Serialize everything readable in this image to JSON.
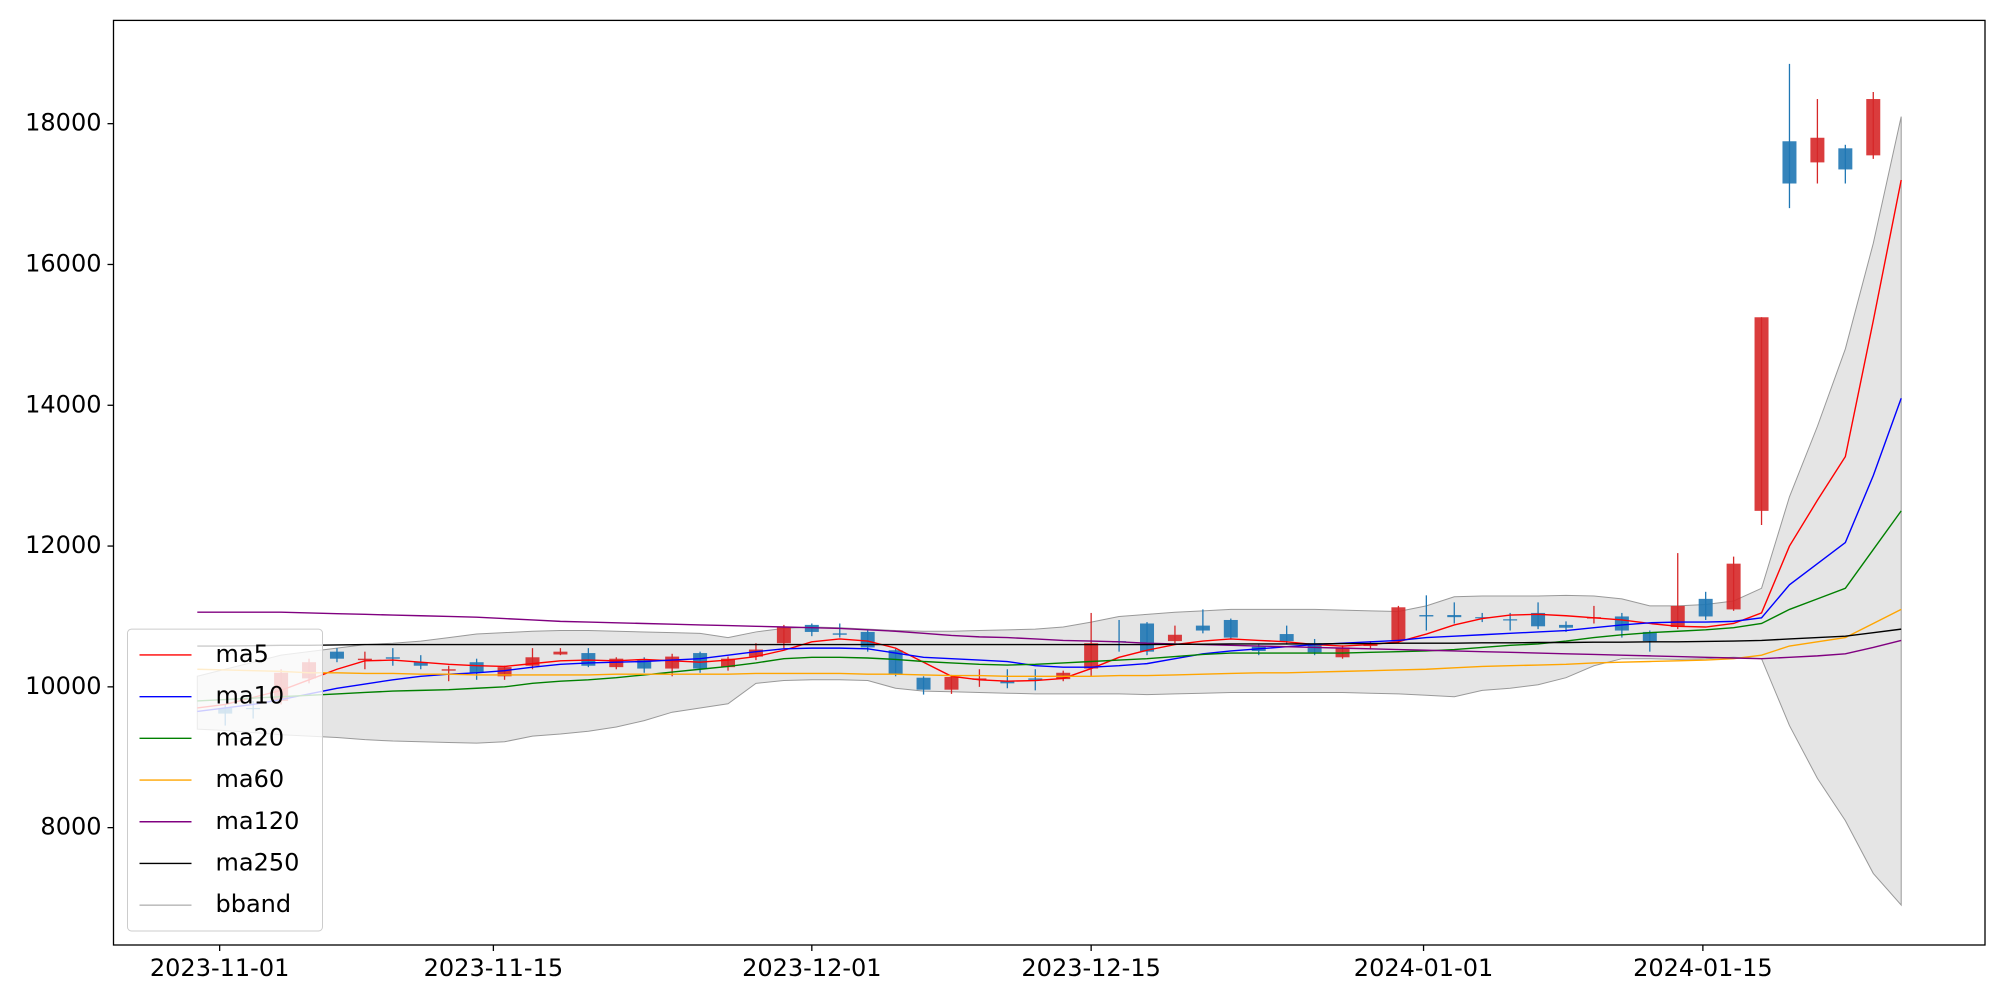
{
  "chart_data": {
    "type": "candlestick",
    "x": [
      0,
      1,
      2,
      3,
      4,
      5,
      6,
      7,
      8,
      9,
      10,
      11,
      12,
      13,
      14,
      15,
      16,
      17,
      18,
      19,
      20,
      21,
      22,
      23,
      24,
      25,
      26,
      27,
      28,
      29,
      30,
      31,
      32,
      33,
      34,
      35,
      36,
      37,
      38,
      39,
      40,
      41,
      42,
      43,
      44,
      45,
      46,
      47,
      48,
      49,
      50,
      51,
      52,
      53,
      54,
      55,
      56,
      57,
      58,
      59,
      60,
      61
    ],
    "xlim": [
      -3,
      64
    ],
    "xticks": [
      {
        "value": 0.8,
        "label": "2023-11-01"
      },
      {
        "value": 10.6,
        "label": "2023-11-15"
      },
      {
        "value": 22,
        "label": "2023-12-01"
      },
      {
        "value": 32,
        "label": "2023-12-15"
      },
      {
        "value": 43.9,
        "label": "2024-01-01"
      },
      {
        "value": 53.9,
        "label": "2024-01-15"
      }
    ],
    "ylim": [
      6333,
      19467
    ],
    "yticks": [
      8000,
      10000,
      12000,
      14000,
      16000,
      18000
    ],
    "legend": "lower left",
    "up_color": "#d62728",
    "down_color": "#1f77b4",
    "candles": {
      "open": [
        null,
        9700,
        9700,
        9800,
        10120,
        10500,
        10380,
        10420,
        10350,
        10230,
        10350,
        10150,
        10300,
        10460,
        10480,
        10280,
        10380,
        10260,
        10480,
        10280,
        10430,
        10620,
        10880,
        10760,
        10780,
        10520,
        10130,
        9960,
        10100,
        10080,
        10120,
        10110,
        10260,
        10650,
        10900,
        10650,
        10870,
        10950,
        10570,
        10750,
        10620,
        10420,
        10580,
        10660,
        11020,
        11020,
        10990,
        10960,
        11050,
        10880,
        10970,
        11000,
        10780,
        10850,
        11250,
        11100,
        12500,
        17750,
        17450,
        17650,
        17550,
        null
      ],
      "high": [
        null,
        9750,
        9800,
        10250,
        10400,
        10550,
        10500,
        10550,
        10450,
        10300,
        10400,
        10300,
        10550,
        10550,
        10550,
        10420,
        10420,
        10470,
        10500,
        10430,
        10620,
        10880,
        10900,
        10900,
        10800,
        10540,
        10150,
        10170,
        10250,
        10250,
        10250,
        10230,
        11050,
        10950,
        10920,
        10870,
        11100,
        10970,
        10600,
        10870,
        10680,
        10590,
        10650,
        11150,
        11300,
        11200,
        11050,
        11050,
        11200,
        10930,
        11150,
        11050,
        10800,
        11900,
        11350,
        11850,
        15250,
        18850,
        18350,
        17700,
        18450,
        null
      ],
      "low": [
        null,
        9450,
        9550,
        9750,
        10050,
        10350,
        10250,
        10300,
        10250,
        10080,
        10100,
        10100,
        10250,
        10450,
        10280,
        10250,
        10200,
        10150,
        10200,
        10230,
        10380,
        10550,
        10720,
        10700,
        10500,
        10150,
        9890,
        9900,
        10000,
        9980,
        9950,
        10080,
        10150,
        10500,
        10450,
        10620,
        10760,
        10680,
        10450,
        10600,
        10450,
        10400,
        10530,
        10620,
        10800,
        10900,
        10920,
        10800,
        10820,
        10780,
        10900,
        10700,
        10500,
        10820,
        10950,
        11080,
        12300,
        16800,
        17150,
        17150,
        17500,
        null
      ],
      "close": [
        null,
        9620,
        9690,
        10200,
        10350,
        10400,
        10400,
        10400,
        10300,
        10250,
        10200,
        10280,
        10420,
        10500,
        10300,
        10400,
        10260,
        10430,
        10260,
        10400,
        10530,
        10850,
        10780,
        10740,
        10560,
        10180,
        9960,
        10140,
        10120,
        10050,
        10100,
        10200,
        10620,
        10640,
        10500,
        10740,
        10800,
        10700,
        10510,
        10650,
        10490,
        10560,
        10610,
        11130,
        11000,
        10990,
        10980,
        10950,
        10860,
        10840,
        10990,
        10800,
        10650,
        11150,
        11000,
        11750,
        15250,
        17150,
        17800,
        17350,
        18350,
        null
      ]
    },
    "series": [
      {
        "name": "ma5",
        "color": "#ff0000",
        "values": [
          9700,
          9750,
          9850,
          9950,
          10100,
          10250,
          10370,
          10380,
          10350,
          10320,
          10300,
          10290,
          10330,
          10370,
          10380,
          10370,
          10390,
          10370,
          10350,
          10380,
          10430,
          10520,
          10640,
          10680,
          10650,
          10550,
          10350,
          10150,
          10100,
          10080,
          10090,
          10120,
          10260,
          10420,
          10520,
          10600,
          10650,
          10680,
          10660,
          10640,
          10600,
          10580,
          10600,
          10640,
          10750,
          10880,
          10970,
          11020,
          11030,
          11010,
          10980,
          10950,
          10900,
          10860,
          10850,
          10900,
          11050,
          12000,
          12650,
          13270,
          15200,
          17200
        ]
      },
      {
        "name": "ma10",
        "color": "#0000ff",
        "values": [
          9650,
          9700,
          9750,
          9820,
          9900,
          9980,
          10040,
          10100,
          10150,
          10180,
          10200,
          10230,
          10280,
          10320,
          10340,
          10350,
          10360,
          10380,
          10400,
          10450,
          10500,
          10540,
          10550,
          10550,
          10540,
          10480,
          10420,
          10400,
          10380,
          10360,
          10300,
          10280,
          10280,
          10300,
          10330,
          10400,
          10470,
          10510,
          10540,
          10570,
          10600,
          10620,
          10640,
          10660,
          10700,
          10720,
          10740,
          10760,
          10780,
          10800,
          10840,
          10880,
          10910,
          10920,
          10920,
          10930,
          10980,
          11450,
          11750,
          12050,
          13000,
          14100
        ]
      },
      {
        "name": "ma20",
        "color": "#008000",
        "values": [
          9800,
          9820,
          9840,
          9860,
          9880,
          9900,
          9920,
          9940,
          9950,
          9960,
          9980,
          10000,
          10050,
          10080,
          10100,
          10130,
          10170,
          10210,
          10250,
          10290,
          10340,
          10400,
          10420,
          10420,
          10410,
          10390,
          10360,
          10340,
          10320,
          10310,
          10320,
          10340,
          10360,
          10380,
          10400,
          10430,
          10460,
          10480,
          10480,
          10480,
          10480,
          10480,
          10490,
          10500,
          10510,
          10530,
          10560,
          10590,
          10610,
          10650,
          10700,
          10740,
          10770,
          10790,
          10810,
          10840,
          10900,
          11100,
          11250,
          11400,
          11950,
          12500
        ]
      },
      {
        "name": "ma60",
        "color": "#ffa500",
        "values": [
          10250,
          10240,
          10230,
          10220,
          10200,
          10200,
          10190,
          10190,
          10180,
          10180,
          10170,
          10170,
          10170,
          10170,
          10170,
          10180,
          10180,
          10180,
          10180,
          10180,
          10190,
          10190,
          10190,
          10190,
          10180,
          10180,
          10170,
          10160,
          10160,
          10150,
          10150,
          10150,
          10150,
          10160,
          10160,
          10170,
          10180,
          10190,
          10200,
          10200,
          10210,
          10220,
          10230,
          10240,
          10250,
          10270,
          10290,
          10300,
          10310,
          10320,
          10340,
          10350,
          10360,
          10370,
          10380,
          10400,
          10450,
          10580,
          10640,
          10700,
          10900,
          11100
        ]
      },
      {
        "name": "ma120",
        "color": "#800080",
        "values": [
          11060,
          11060,
          11060,
          11060,
          11050,
          11040,
          11030,
          11020,
          11010,
          11000,
          10990,
          10970,
          10950,
          10930,
          10920,
          10910,
          10900,
          10890,
          10880,
          10870,
          10860,
          10850,
          10840,
          10830,
          10810,
          10790,
          10760,
          10730,
          10710,
          10700,
          10680,
          10660,
          10650,
          10640,
          10620,
          10610,
          10600,
          10590,
          10580,
          10570,
          10560,
          10550,
          10540,
          10530,
          10520,
          10510,
          10500,
          10490,
          10480,
          10470,
          10460,
          10450,
          10440,
          10430,
          10420,
          10410,
          10400,
          10420,
          10440,
          10470,
          10560,
          10660
        ]
      },
      {
        "name": "ma250",
        "color": "#000000",
        "values": [
          10580,
          10580,
          10585,
          10590,
          10590,
          10595,
          10600,
          10600,
          10600,
          10600,
          10600,
          10600,
          10600,
          10600,
          10600,
          10600,
          10600,
          10600,
          10600,
          10600,
          10600,
          10600,
          10600,
          10600,
          10600,
          10600,
          10600,
          10600,
          10600,
          10600,
          10600,
          10600,
          10600,
          10600,
          10600,
          10605,
          10605,
          10610,
          10610,
          10610,
          10610,
          10615,
          10615,
          10620,
          10620,
          10620,
          10625,
          10625,
          10630,
          10630,
          10635,
          10635,
          10640,
          10640,
          10645,
          10650,
          10660,
          10680,
          10700,
          10720,
          10770,
          10820
        ]
      }
    ],
    "band": {
      "name": "bband",
      "color": "#999999",
      "fill": "#e5e5e5",
      "upper": [
        10150,
        10250,
        10350,
        10450,
        10500,
        10550,
        10600,
        10620,
        10650,
        10700,
        10750,
        10770,
        10790,
        10800,
        10800,
        10790,
        10780,
        10770,
        10760,
        10700,
        10780,
        10830,
        10850,
        10840,
        10820,
        10800,
        10790,
        10790,
        10800,
        10810,
        10820,
        10850,
        10920,
        11000,
        11030,
        11060,
        11080,
        11100,
        11100,
        11100,
        11100,
        11090,
        11080,
        11070,
        11150,
        11280,
        11290,
        11290,
        11290,
        11300,
        11290,
        11250,
        11150,
        11150,
        11170,
        11220,
        11400,
        12700,
        13700,
        14800,
        16300,
        18100
      ],
      "lower": [
        9400,
        9380,
        9350,
        9320,
        9300,
        9280,
        9250,
        9230,
        9220,
        9210,
        9200,
        9220,
        9300,
        9330,
        9370,
        9430,
        9520,
        9640,
        9700,
        9760,
        10050,
        10090,
        10100,
        10100,
        10090,
        9980,
        9940,
        9930,
        9920,
        9910,
        9900,
        9900,
        9900,
        9900,
        9890,
        9900,
        9910,
        9920,
        9920,
        9920,
        9920,
        9920,
        9910,
        9900,
        9880,
        9860,
        9950,
        9980,
        10030,
        10130,
        10300,
        10400,
        10400,
        10390,
        10400,
        10420,
        10400,
        9450,
        8700,
        8100,
        7350,
        6900
      ]
    }
  }
}
